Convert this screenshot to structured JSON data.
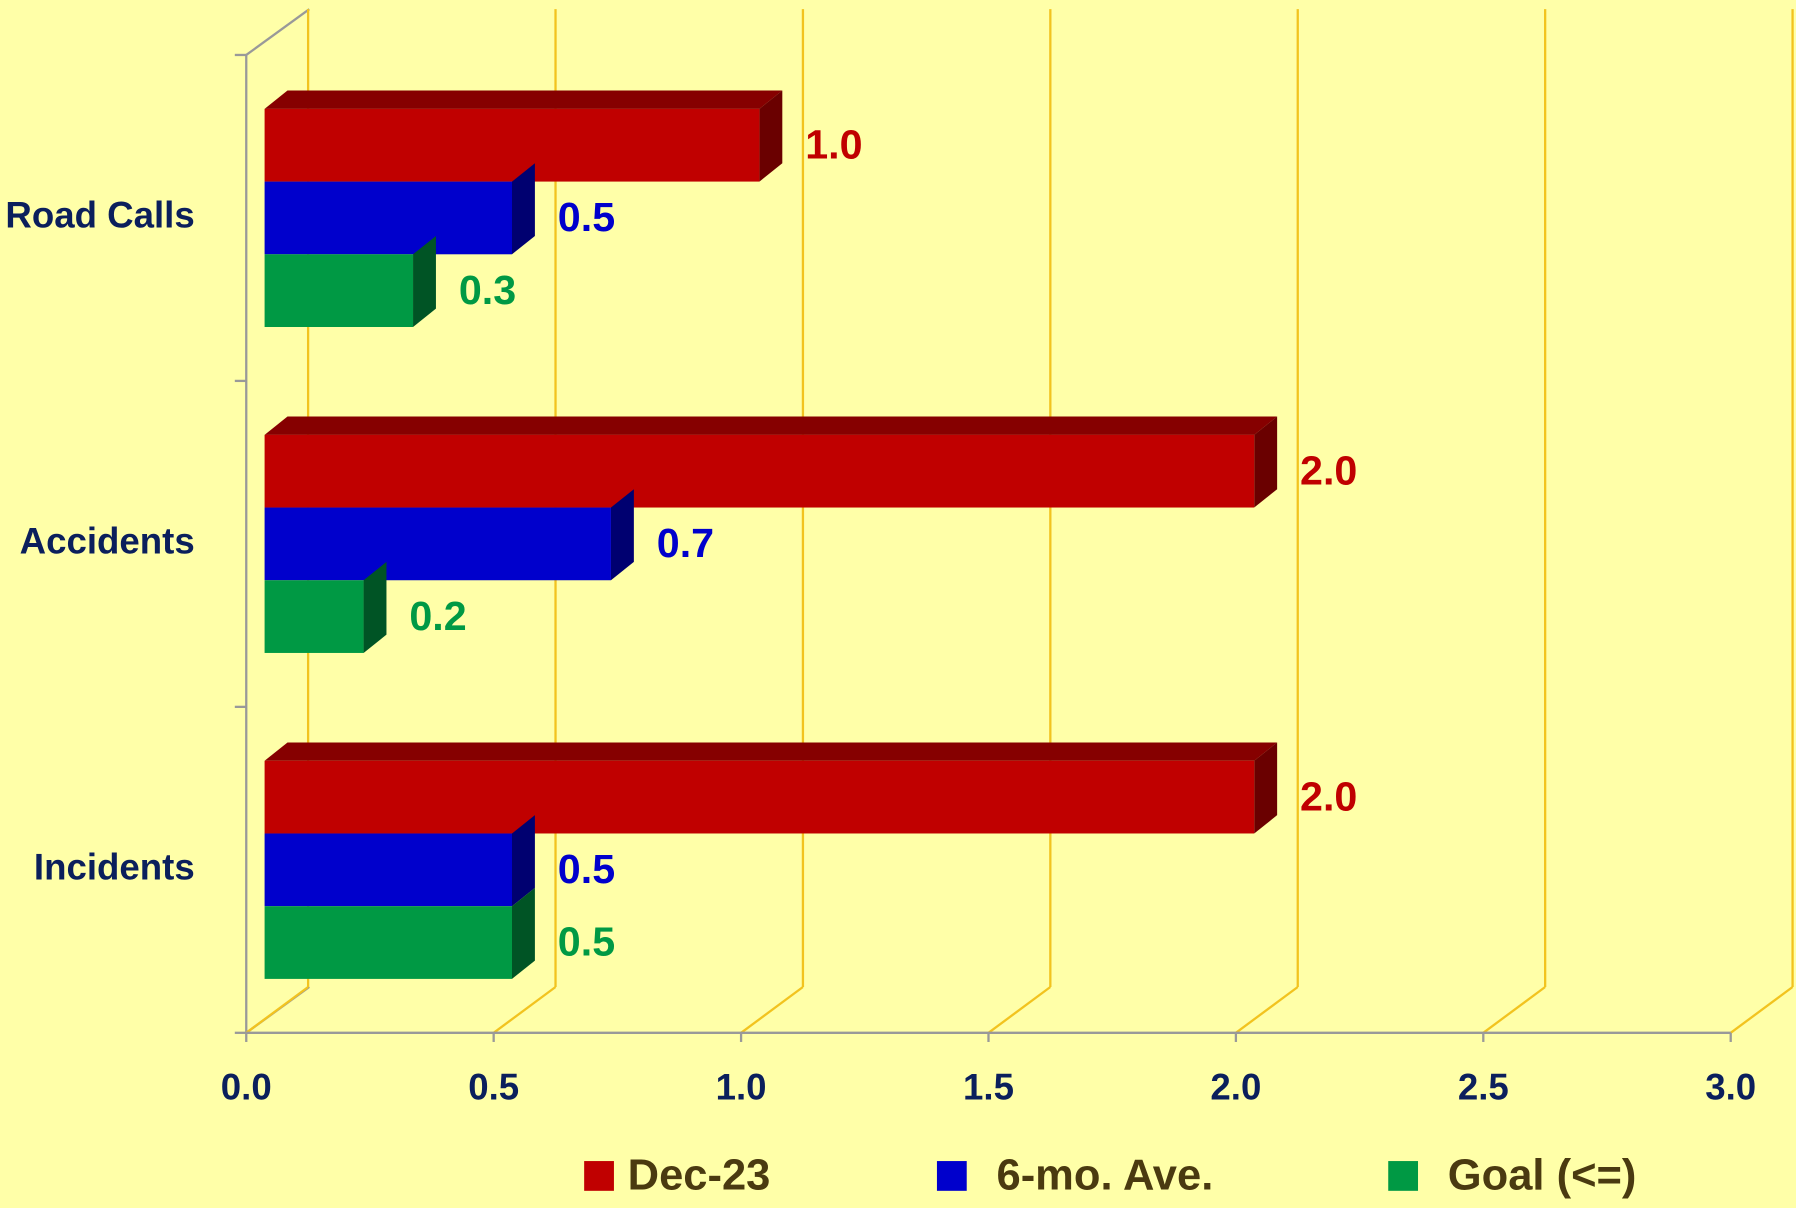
{
  "chart_data": {
    "type": "hbar3d",
    "categories": [
      "Road Calls",
      "Accidents",
      "Incidents"
    ],
    "series": [
      {
        "name": "Dec-23",
        "color": "#c00000",
        "values": [
          1.0,
          2.0,
          2.0
        ],
        "value_labels": [
          "1.0",
          "2.0",
          "2.0"
        ]
      },
      {
        "name": "6-mo. Ave.",
        "color": "#0000cc",
        "values": [
          0.5,
          0.7,
          0.5
        ],
        "value_labels": [
          "0.5",
          "0.7",
          "0.5"
        ]
      },
      {
        "name": "Goal (<=)",
        "color": "#009944",
        "values": [
          0.3,
          0.2,
          0.5
        ],
        "value_labels": [
          "0.3",
          "0.2",
          "0.5"
        ]
      }
    ],
    "xlim": [
      0,
      3
    ],
    "xticks": [
      {
        "value": 0,
        "label": "0.0"
      },
      {
        "value": 0.5,
        "label": "0.5"
      },
      {
        "value": 1,
        "label": "1.0"
      },
      {
        "value": 1.5,
        "label": "1.5"
      },
      {
        "value": 2,
        "label": "2.0"
      },
      {
        "value": 2.5,
        "label": "2.5"
      },
      {
        "value": 3,
        "label": "3.0"
      }
    ],
    "grid": true,
    "legend": "bottom"
  }
}
